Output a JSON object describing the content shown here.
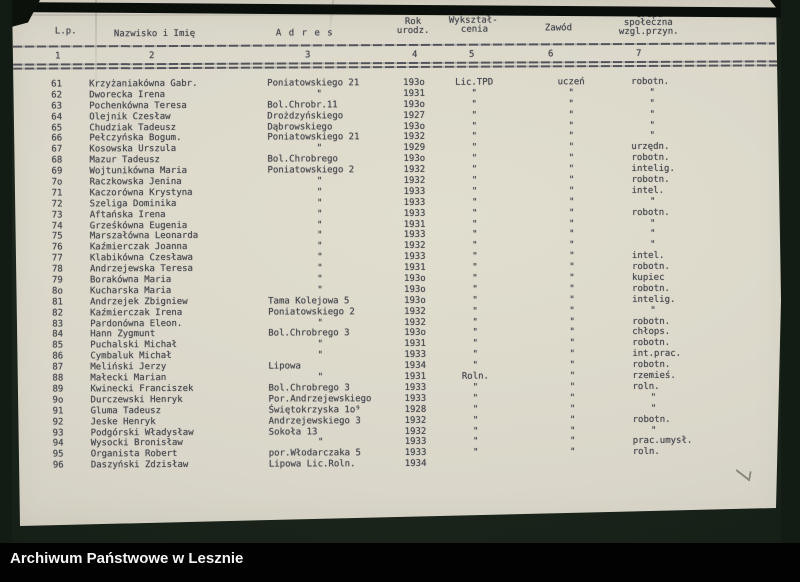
{
  "scan": {
    "footer_bar_label": "Archiwum Państwowe w Lesznie",
    "handwritten_mark": "7"
  },
  "colors": {
    "paper": "#dad7ca",
    "ink": "#4b4c52",
    "photo_background": "#18221a",
    "footer_bg": "#020202",
    "footer_text": "#f4f4f4",
    "pencil": "#74746a"
  },
  "table": {
    "headers": {
      "lp": "L.p.",
      "name": "Nazwisko i Imię",
      "address": "A d r e s",
      "year_line1": "Rok",
      "year_line2": "urodz.",
      "educ_line1": "Wykształ-",
      "educ_line2": "cenia",
      "occupation": "Zawód",
      "group_line1": "Grupa",
      "group_line2": "społeczna",
      "group_line3": "wzgl.przyn."
    },
    "column_numbers": [
      "1",
      "2",
      "3",
      "4",
      "5",
      "6",
      "7"
    ],
    "rows": [
      {
        "lp": "61",
        "name": "Krzyżaniakówna Gabr.",
        "addr": "Poniatowskiego 21",
        "year": "193o",
        "ed": "Lic.TPD",
        "zaw": "uczeń",
        "grp": "robotn."
      },
      {
        "lp": "62",
        "name": "Dworecka Irena",
        "addr": "\"",
        "year": "1931",
        "ed": "\"",
        "zaw": "\"",
        "grp": "\""
      },
      {
        "lp": "63",
        "name": "Pochenkówna Teresa",
        "addr": "Bol.Chrobr.11",
        "year": "193o",
        "ed": "\"",
        "zaw": "\"",
        "grp": "\""
      },
      {
        "lp": "64",
        "name": "Olejnik Czesław",
        "addr": "Drożdzyńskiego",
        "year": "1927",
        "ed": "\"",
        "zaw": "\"",
        "grp": "\""
      },
      {
        "lp": "65",
        "name": "Chudziak Tadeusz",
        "addr": "Dąbrowskiego",
        "year": "193o",
        "ed": "\"",
        "zaw": "\"",
        "grp": "\""
      },
      {
        "lp": "66",
        "name": "Pełczyńska Bogum.",
        "addr": "Poniatowskiego 21",
        "year": "1932",
        "ed": "\"",
        "zaw": "\"",
        "grp": "\""
      },
      {
        "lp": "67",
        "name": "Kosowska Urszula",
        "addr": "\"",
        "year": "1929",
        "ed": "\"",
        "zaw": "\"",
        "grp": "urzędn."
      },
      {
        "lp": "68",
        "name": "Mazur Tadeusz",
        "addr": "Bol.Chrobrego",
        "year": "193o",
        "ed": "\"",
        "zaw": "\"",
        "grp": "robotn."
      },
      {
        "lp": "69",
        "name": "Wojtunikówna Maria",
        "addr": "Poniatowskiego 2",
        "year": "1932",
        "ed": "\"",
        "zaw": "\"",
        "grp": "intelig."
      },
      {
        "lp": "7o",
        "name": "Raczkowska Jenina",
        "addr": "\"",
        "year": "1932",
        "ed": "\"",
        "zaw": "\"",
        "grp": "robotn."
      },
      {
        "lp": "71",
        "name": "Kaczorówna Krystyna",
        "addr": "\"",
        "year": "1933",
        "ed": "\"",
        "zaw": "\"",
        "grp": "intel."
      },
      {
        "lp": "72",
        "name": "Szeliga Dominika",
        "addr": "\"",
        "year": "1933",
        "ed": "\"",
        "zaw": "\"",
        "grp": "\""
      },
      {
        "lp": "73",
        "name": "Aftańska Irena",
        "addr": "\"",
        "year": "1933",
        "ed": "\"",
        "zaw": "\"",
        "grp": "robotn."
      },
      {
        "lp": "74",
        "name": "Grześkówna Eugenia",
        "addr": "\"",
        "year": "1931",
        "ed": "\"",
        "zaw": "\"",
        "grp": "\""
      },
      {
        "lp": "75",
        "name": "Marszałówna Leonarda",
        "addr": "\"",
        "year": "1933",
        "ed": "\"",
        "zaw": "\"",
        "grp": "\""
      },
      {
        "lp": "76",
        "name": "Kaźmierczak Joanna",
        "addr": "\"",
        "year": "1932",
        "ed": "\"",
        "zaw": "\"",
        "grp": "\""
      },
      {
        "lp": "77",
        "name": "Klabikówna Czesława",
        "addr": "\"",
        "year": "1933",
        "ed": "\"",
        "zaw": "\"",
        "grp": "intel."
      },
      {
        "lp": "78",
        "name": "Andrzejewska Teresa",
        "addr": "\"",
        "year": "1931",
        "ed": "\"",
        "zaw": "\"",
        "grp": "robotn."
      },
      {
        "lp": "79",
        "name": "Borakówna Maria",
        "addr": "\"",
        "year": "193o",
        "ed": "\"",
        "zaw": "\"",
        "grp": "kupiec"
      },
      {
        "lp": "8o",
        "name": "Kucharska Maria",
        "addr": "\"",
        "year": "193o",
        "ed": "\"",
        "zaw": "\"",
        "grp": "robotn."
      },
      {
        "lp": "81",
        "name": "Andrzejek Zbigniew",
        "addr": "Tama Kolejowa 5",
        "year": "193o",
        "ed": "\"",
        "zaw": "\"",
        "grp": "intelig."
      },
      {
        "lp": "82",
        "name": "Kaźmierczak Irena",
        "addr": "Poniatowskiego 2",
        "year": "1932",
        "ed": "\"",
        "zaw": "\"",
        "grp": "\""
      },
      {
        "lp": "83",
        "name": "Pardonówna Eleon.",
        "addr": "\"",
        "year": "1932",
        "ed": "\"",
        "zaw": "\"",
        "grp": "robotn."
      },
      {
        "lp": "84",
        "name": "Hann Zygmunt",
        "addr": "Bol.Chrobrego 3",
        "year": "193o",
        "ed": "\"",
        "zaw": "\"",
        "grp": "chłops."
      },
      {
        "lp": "85",
        "name": "Puchalski Michał",
        "addr": "\"",
        "year": "1931",
        "ed": "\"",
        "zaw": "\"",
        "grp": "robotn."
      },
      {
        "lp": "86",
        "name": "Cymbaluk Michał",
        "addr": "\"",
        "year": "1933",
        "ed": "\"",
        "zaw": "\"",
        "grp": "int.prac."
      },
      {
        "lp": "87",
        "name": "Meliński Jerzy",
        "addr": "Lipowa",
        "year": "1934",
        "ed": "\"",
        "zaw": "\"",
        "grp": "robotn."
      },
      {
        "lp": "88",
        "name": "Małecki Marian",
        "addr": "\"",
        "year": "1931",
        "ed": "Roln.",
        "zaw": "\"",
        "grp": "rzemieś."
      },
      {
        "lp": "89",
        "name": "Kwinecki Franciszek",
        "addr": "Bol.Chrobrego 3",
        "year": "1933",
        "ed": "\"",
        "zaw": "\"",
        "grp": "roln."
      },
      {
        "lp": "9o",
        "name": "Durczewski Henryk",
        "addr": "Por.Andrzejewskiego",
        "year": "1933",
        "ed": "\"",
        "zaw": "\"",
        "grp": "\""
      },
      {
        "lp": "91",
        "name": "Gluma Tadeusz",
        "addr": "Świętokrzyska 1o⁹",
        "year": "1928",
        "ed": "\"",
        "zaw": "\"",
        "grp": "\""
      },
      {
        "lp": "92",
        "name": "Jeske Henryk",
        "addr": "Andrzejewskiego 3",
        "year": "1932",
        "ed": "\"",
        "zaw": "\"",
        "grp": "robotn."
      },
      {
        "lp": "93",
        "name": "Podgórski Władysław",
        "addr": "Sokoła 13",
        "year": "1932",
        "ed": "\"",
        "zaw": "\"",
        "grp": "\""
      },
      {
        "lp": "94",
        "name": "Wysocki Bronisław",
        "addr": "\"",
        "year": "1933",
        "ed": "\"",
        "zaw": "\"",
        "grp": "prac.umysł."
      },
      {
        "lp": "95",
        "name": "Organista Robert",
        "addr": "por.Włodarczaka 5",
        "year": "1933",
        "ed": "\"",
        "zaw": "\"",
        "grp": "roln."
      },
      {
        "lp": "96",
        "name": "Daszyński Zdzisław",
        "addr": "Lipowa Lic.Roln.",
        "year": "1934",
        "ed": "",
        "zaw": "",
        "grp": ""
      }
    ]
  }
}
